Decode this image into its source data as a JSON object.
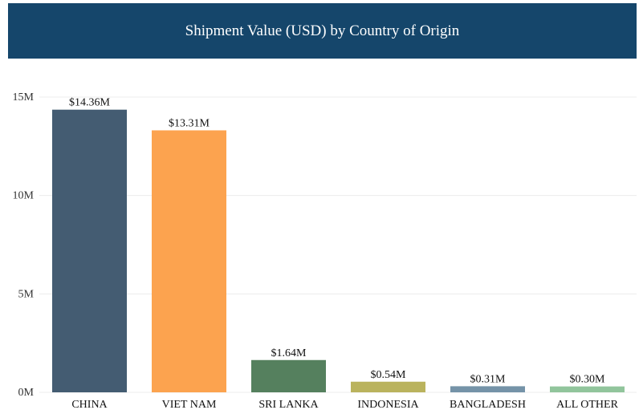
{
  "header": {
    "title": "Shipment Value (USD) by Country of Origin"
  },
  "colors": {
    "header_bg": "#15466b"
  },
  "chart_data": {
    "type": "bar",
    "title": "Shipment Value (USD) by Country of Origin",
    "xlabel": "",
    "ylabel": "",
    "ylim": [
      0,
      15
    ],
    "yunit": "M USD",
    "yticks": [
      0,
      5,
      10,
      15
    ],
    "ytick_labels": [
      "0M",
      "5M",
      "10M",
      "15M"
    ],
    "grid": true,
    "legend": "none",
    "categories": [
      "CHINA",
      "VIET NAM",
      "SRI LANKA",
      "INDONESIA",
      "BANGLADESH",
      "ALL OTHER"
    ],
    "values": [
      14.36,
      13.31,
      1.64,
      0.54,
      0.31,
      0.3
    ],
    "data_labels": [
      "$14.36M",
      "$13.31M",
      "$1.64M",
      "$0.54M",
      "$0.31M",
      "$0.30M"
    ],
    "colors": [
      "#445c72",
      "#fca34f",
      "#55805e",
      "#bab35d",
      "#7593a8",
      "#91c59c"
    ]
  }
}
